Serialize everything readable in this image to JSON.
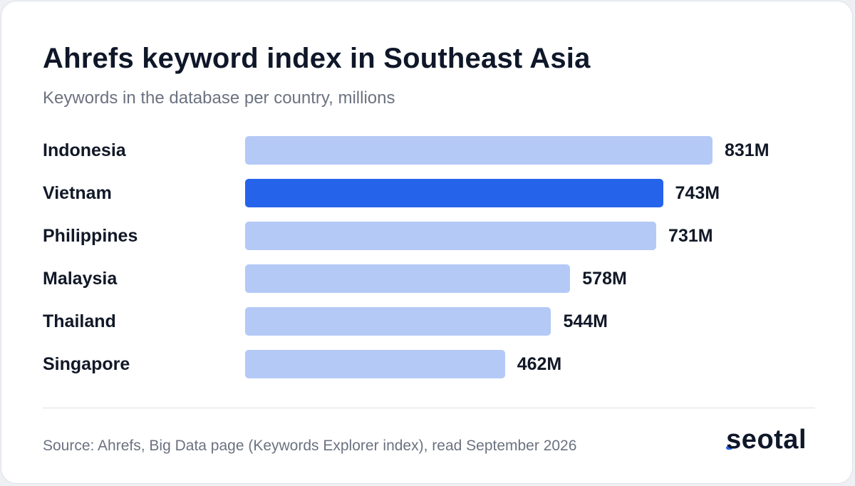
{
  "chart_data": {
    "type": "bar",
    "orientation": "horizontal",
    "title": "Ahrefs keyword index in Southeast Asia",
    "subtitle": "Keywords in the database per country, millions",
    "categories": [
      "Indonesia",
      "Vietnam",
      "Philippines",
      "Malaysia",
      "Thailand",
      "Singapore"
    ],
    "values": [
      831,
      743,
      731,
      578,
      544,
      462
    ],
    "value_labels": [
      "831M",
      "743M",
      "731M",
      "578M",
      "544M",
      "462M"
    ],
    "highlighted": "Vietnam",
    "grid": false,
    "legend": "none"
  },
  "colors": {
    "bar": "#b4c9f6",
    "bar_highlight": "#2563eb"
  },
  "footer": {
    "source": "Source: Ahrefs, Big Data page (Keywords Explorer index), read September 2026",
    "logo": "seotal"
  }
}
